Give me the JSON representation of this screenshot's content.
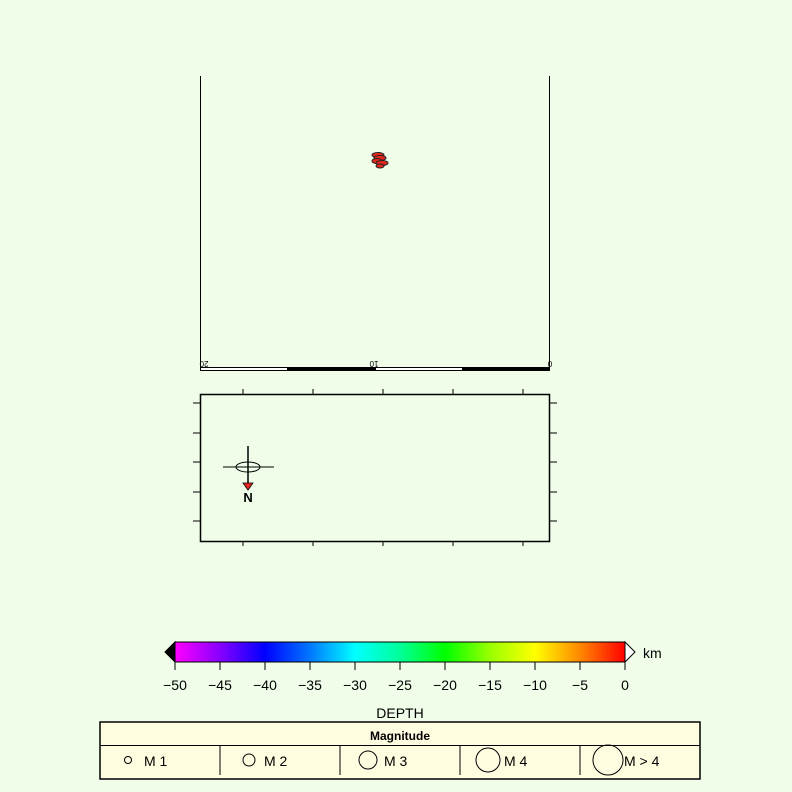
{
  "map": {
    "upper_scale_labels": [
      "20",
      "10",
      "0"
    ],
    "north_label": "N",
    "event_cluster": {
      "color": "#e8281e",
      "outline": "#222222"
    }
  },
  "depth_colorbar": {
    "unit": "km",
    "ticks": [
      "−50",
      "−45",
      "−40",
      "−35",
      "−30",
      "−25",
      "−20",
      "−15",
      "−10",
      "−5",
      "0"
    ],
    "range": [
      -50,
      0
    ],
    "title": "DEPTH",
    "colors": [
      "#ff00ff",
      "#7a00ff",
      "#0000ff",
      "#0088ff",
      "#00ffff",
      "#00ff88",
      "#00ff00",
      "#aaff00",
      "#ffff00",
      "#ff8800",
      "#ff0000"
    ]
  },
  "magnitude_legend": {
    "title": "Magnitude",
    "items": [
      {
        "label": "M 1"
      },
      {
        "label": "M 2"
      },
      {
        "label": "M 3"
      },
      {
        "label": "M 4"
      },
      {
        "label": "M > 4"
      }
    ],
    "background": "#fffde0"
  }
}
